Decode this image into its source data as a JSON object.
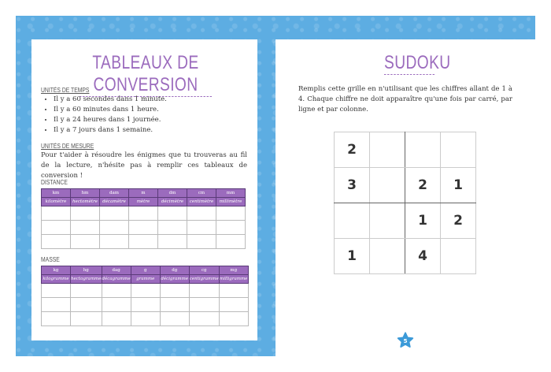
{
  "left": {
    "title": "TABLEAUX DE CONVERSION",
    "time_heading": "UNITÉS DE TEMPS",
    "time_items": [
      "Il y a 60 secondes dans 1 minute.",
      "Il y a 60 minutes dans 1 heure.",
      "Il y a 24 heures dans 1 journée.",
      "Il y a 7 jours dans 1 semaine."
    ],
    "measure_heading": "UNITÉS DE MESURE",
    "measure_text": "Pour t'aider à résoudre les énigmes que tu trouveras au fil de la lecture, n'hésite pas à remplir ces tableaux de conversion !",
    "distance": {
      "label": "DISTANCE",
      "abbr": [
        "km",
        "hm",
        "dam",
        "m",
        "dm",
        "cm",
        "mm"
      ],
      "names": [
        "kilomètre",
        "hectomètre",
        "décamètre",
        "mètre",
        "décimètre",
        "centimètre",
        "millimètre"
      ]
    },
    "mass": {
      "label": "MASSE",
      "abbr": [
        "kg",
        "hg",
        "dag",
        "g",
        "dg",
        "cg",
        "mg"
      ],
      "names": [
        "kilogramme",
        "hectogramme",
        "décagramme",
        "gramme",
        "décigramme",
        "centigramme",
        "milligramme"
      ]
    }
  },
  "right": {
    "title": "SUDOKU",
    "instructions": "Remplis cette grille en n'utilisant que les chiffres allant de 1 à 4. Chaque chiffre ne doit apparaître qu'une fois par carré, par ligne et par colonne.",
    "grid": [
      [
        "2",
        "",
        "",
        ""
      ],
      [
        "3",
        "",
        "2",
        "1"
      ],
      [
        "",
        "",
        "1",
        "2"
      ],
      [
        "1",
        "",
        "4",
        ""
      ]
    ],
    "page_number": "5"
  },
  "colors": {
    "accent": "#9b6bbd",
    "background_blue": "#5dade2"
  }
}
